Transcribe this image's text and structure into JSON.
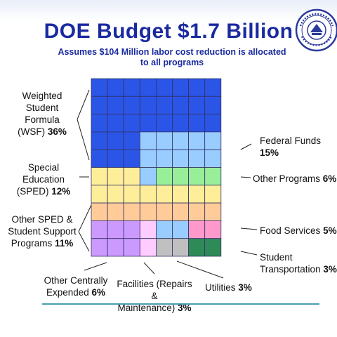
{
  "header": {
    "title": "DOE Budget $1.7 Billion",
    "subtitle_line1": "Assumes $104 Million labor cost reduction is allocated",
    "subtitle_line2": "to all programs"
  },
  "seal": {
    "icon": "department-of-education-seal-icon",
    "color": "#2a3a9c"
  },
  "chart_data": {
    "type": "waffle",
    "title": "DOE Budget $1.7 Billion",
    "grid": {
      "rows": 10,
      "cols": 8,
      "total_cells": 80
    },
    "series": [
      {
        "name": "Weighted Student Formula (WSF)",
        "value": 36,
        "unit": "%",
        "color": "#2b55e6",
        "label_lines": [
          "Weighted",
          "Student",
          "Formula"
        ],
        "label_last": "(WSF)",
        "value_text": "36%"
      },
      {
        "name": "Federal Funds",
        "value": 15,
        "unit": "%",
        "color": "#99ccff",
        "label_lines": [
          "Federal Funds"
        ],
        "value_text": "15%"
      },
      {
        "name": "Other Programs",
        "value": 6,
        "unit": "%",
        "color": "#99ee99",
        "label_lines": [
          "Other Programs"
        ],
        "value_text": "6%"
      },
      {
        "name": "Special Education (SPED)",
        "value": 12,
        "unit": "%",
        "color": "#ffee99",
        "label_lines": [
          "Special",
          "Education"
        ],
        "label_last": "(SPED)",
        "value_text": "12%"
      },
      {
        "name": "Other SPED & Student Support Programs",
        "value": 11,
        "unit": "%",
        "color": "#ffcc99",
        "label_lines": [
          "Other SPED &",
          "Student Support"
        ],
        "label_last": "Programs",
        "value_text": "11%"
      },
      {
        "name": "Food Services",
        "value": 5,
        "unit": "%",
        "color": "#ff99cc",
        "label_lines": [
          "Food Services"
        ],
        "value_text": "5%"
      },
      {
        "name": "Other Centrally Expended",
        "value": 6,
        "unit": "%",
        "color": "#cc99ff",
        "label_lines": [
          "Other Centrally"
        ],
        "label_last": "Expended",
        "value_text": "6%"
      },
      {
        "name": "Facilities (Repairs & Maintenance)",
        "value": 3,
        "unit": "%",
        "color": "#ffccff",
        "label_lines": [
          "Facilities (Repairs &"
        ],
        "label_last": "Maintenance)",
        "value_text": "3%"
      },
      {
        "name": "Utilities",
        "value": 3,
        "unit": "%",
        "color": "#c0c0c0",
        "label_lines": [],
        "label_last": "Utilities",
        "value_text": "3%"
      },
      {
        "name": "Student Transportation",
        "value": 3,
        "unit": "%",
        "color": "#2e8b57",
        "label_lines": [
          "Student"
        ],
        "label_last": "Transportation",
        "value_text": "3%"
      }
    ],
    "cell_map": [
      "WWWWWWWW",
      "WWWWWWWW",
      "WWWWWWWW",
      "WWWFFFFF",
      "WWWFFFFF",
      "SSSFOOOO",
      "SSSSSSSS",
      "PPPPPPPP",
      "CCCHFFff",
      "CCCHUUTT"
    ],
    "cell_key": {
      "W": "Weighted Student Formula (WSF)",
      "F": "Federal Funds",
      "O": "Other Programs",
      "S": "Special Education (SPED)",
      "P": "Other SPED & Student Support Programs",
      "f": "Food Services",
      "C": "Other Centrally Expended",
      "H": "Facilities (Repairs & Maintenance)",
      "U": "Utilities",
      "T": "Student Transportation"
    }
  }
}
